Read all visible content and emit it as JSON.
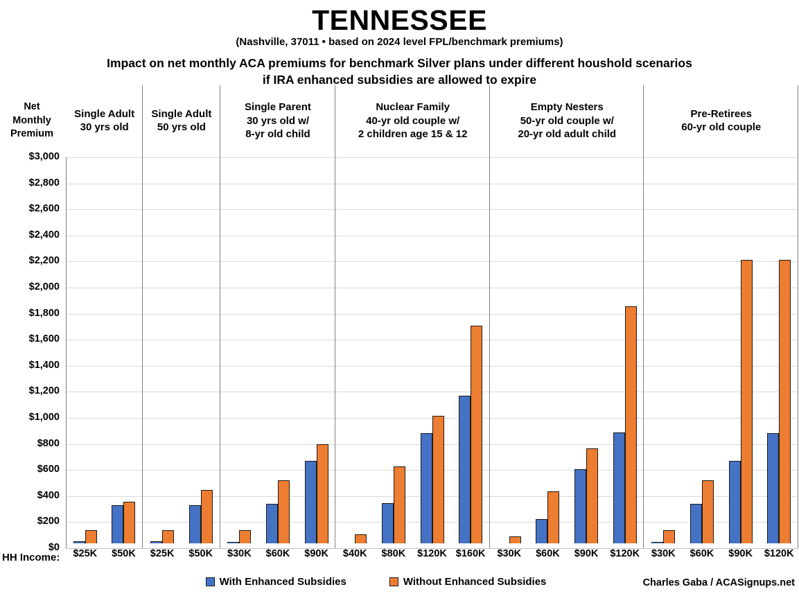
{
  "header": {
    "title": "TENNESSEE",
    "subtitle": "(Nashville, 37011 • based on 2024 level FPL/benchmark premiums)",
    "heading_line1": "Impact on net monthly ACA premiums for benchmark Silver plans under different houshold scenarios",
    "heading_line2": "if IRA enhanced subsidies are allowed to expire"
  },
  "axis": {
    "y_title": "Net\nMonthly\nPremium",
    "y_tick_labels": [
      "$3,000",
      "$2,800",
      "$2,600",
      "$2,400",
      "$2,200",
      "$2,000",
      "$1,800",
      "$1,600",
      "$1,400",
      "$1,200",
      "$1,000",
      "$800",
      "$600",
      "$400",
      "$200",
      "$0"
    ],
    "hh_income_label": "HH Income:"
  },
  "legend": {
    "items": [
      {
        "label": "With Enhanced Subsidies",
        "color": "#4472C4"
      },
      {
        "label": "Without Enhanced Subsidies",
        "color": "#ED7D31"
      }
    ]
  },
  "credit": "Charles Gaba / ACASignups.net",
  "colors": {
    "with_enhanced": "#4472C4",
    "without_enhanced": "#ED7D31",
    "bar_border": "#1a1a1a",
    "gridline": "#d9d9d9",
    "zero_line": "#c0c0c0",
    "separator": "#808080"
  },
  "chart_data": {
    "type": "bar",
    "title": "Impact on net monthly ACA premiums for benchmark Silver plans under different houshold scenarios if IRA enhanced subsidies are allowed to expire",
    "ylabel": "Net Monthly Premium",
    "xlabel": "HH Income",
    "ylim": [
      0,
      3000
    ],
    "ystep": 200,
    "grid": true,
    "legend_position": "bottom",
    "series_names": [
      "With Enhanced Subsidies",
      "Without Enhanced Subsidies"
    ],
    "groups": [
      {
        "label": "Single Adult\n30 yrs old",
        "categories": [
          "$25K",
          "$50K"
        ],
        "with_enhanced": [
          20,
          295
        ],
        "without_enhanced": [
          105,
          322
        ]
      },
      {
        "label": "Single Adult\n50 yrs old",
        "categories": [
          "$25K",
          "$50K"
        ],
        "with_enhanced": [
          20,
          295
        ],
        "without_enhanced": [
          105,
          410
        ]
      },
      {
        "label": "Single Parent\n30 yrs old w/\n8-yr old child",
        "categories": [
          "$30K",
          "$60K",
          "$90K"
        ],
        "with_enhanced": [
          8,
          303,
          637
        ],
        "without_enhanced": [
          105,
          488,
          760
        ]
      },
      {
        "label": "Nuclear Family\n40-yr old couple w/\n2 children age 15 & 12",
        "categories": [
          "$40K",
          "$80K",
          "$120K",
          "$160K"
        ],
        "with_enhanced": [
          0,
          310,
          849,
          1133
        ],
        "without_enhanced": [
          68,
          592,
          980,
          1670
        ]
      },
      {
        "label": "Empty Nesters\n50-yr old couple w/\n20-yr old adult child",
        "categories": [
          "$30K",
          "$60K",
          "$90K",
          "$120K"
        ],
        "with_enhanced": [
          0,
          186,
          569,
          851
        ],
        "without_enhanced": [
          53,
          400,
          729,
          1823
        ]
      },
      {
        "label": "Pre-Retirees\n60-yr old couple",
        "categories": [
          "$30K",
          "$60K",
          "$90K",
          "$120K"
        ],
        "with_enhanced": [
          5,
          303,
          635,
          846
        ],
        "without_enhanced": [
          103,
          484,
          2177,
          2177
        ]
      }
    ]
  }
}
